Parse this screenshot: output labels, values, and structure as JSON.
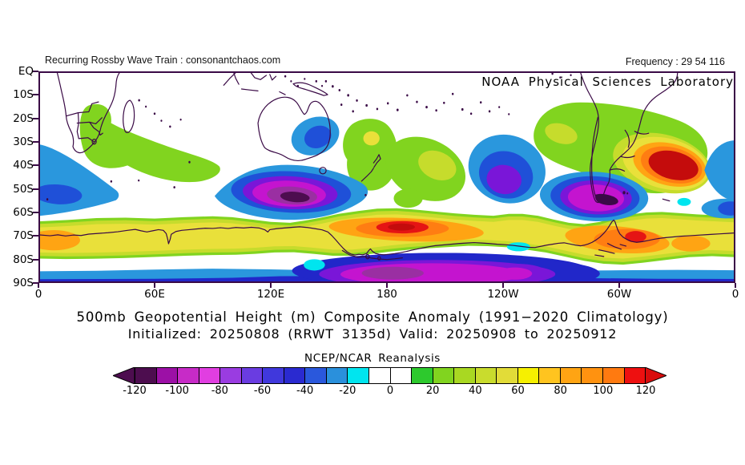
{
  "header": {
    "left": "Recurring Rossby Wave Train : consonantchaos.com",
    "frequency": "Frequency : 29 54 116",
    "org": "NOAA Physical Sciences Laboratory"
  },
  "title": {
    "line1": "500mb Geopotential Height (m) Composite Anomaly (1991−2020 Climatology)",
    "line2": "Initialized: 20250808 (RRWT 3135d) Valid: 20250908 to 20250912"
  },
  "axes": {
    "y_ticks": [
      "EQ",
      "10S",
      "20S",
      "30S",
      "40S",
      "50S",
      "60S",
      "70S",
      "80S",
      "90S"
    ],
    "x_ticks": [
      "0",
      "60E",
      "120E",
      "180",
      "120W",
      "60W",
      "0"
    ]
  },
  "colorbar": {
    "label": "NCEP/NCAR Reanalysis",
    "tick_labels": [
      "-120",
      "-100",
      "-80",
      "-60",
      "-40",
      "-20",
      "0",
      "20",
      "40",
      "60",
      "80",
      "100",
      "120"
    ],
    "cell_colors": [
      "#4d0d4f",
      "#9c10a6",
      "#c72bc7",
      "#e13ee1",
      "#9a3ce1",
      "#6a3ce1",
      "#4038dc",
      "#2a2ad0",
      "#2a58dc",
      "#2a90dc",
      "#00e5ef",
      "#ffffff",
      "#ffffff",
      "#2dc92d",
      "#81d41f",
      "#a9d822",
      "#c9dc2d",
      "#e2dc38",
      "#f6f000",
      "#ffc41f",
      "#ffa413",
      "#ff9210",
      "#ff7a10",
      "#ee1010"
    ],
    "left_arrow": "#4d0d4f",
    "right_arrow": "#d90c0c"
  },
  "palette": {
    "lightblue": "#2a97dd",
    "blue": "#1f50d8",
    "deepblue": "#2127c9",
    "cyan": "#00e5ef",
    "purple": "#7a16d8",
    "magenta": "#c414cf",
    "mutedpurple": "#9a2fa2",
    "darkpurple": "#4d0d4f",
    "green": "#81d41f",
    "yellowgreen": "#c6dc2c",
    "yellow": "#e9e03a",
    "orange": "#ffa413",
    "deeporange": "#ff7d12",
    "red": "#e51414",
    "darkred": "#c40c0c",
    "coast": "#3a0a46",
    "frame": "#3a0a46"
  },
  "chart_data": {
    "type": "heatmap",
    "subtype": "filled-contour-anomaly-map",
    "title": "500mb Geopotential Height (m) Composite Anomaly (1991-2020 Climatology)",
    "initialized": "20250808",
    "wave_train_id": "RRWT 3135d",
    "valid_period": "20250908 to 20250912",
    "frequency_values": [
      29,
      54,
      116
    ],
    "data_source": "NCEP/NCAR Reanalysis",
    "units": "m",
    "lon_domain_deg_east": [
      0,
      360
    ],
    "lat_domain_deg_south": [
      0,
      90
    ],
    "colorbar_range": [
      -120,
      120
    ],
    "colorbar_step": 10,
    "anomaly_centers": [
      {
        "name": "south-indian-low",
        "lon_e": 12,
        "lat_s": 52,
        "peak_m": -50
      },
      {
        "name": "east-australia-low",
        "lon_e": 144,
        "lat_s": 28,
        "peak_m": -50
      },
      {
        "name": "south-of-australia-low",
        "lon_e": 132,
        "lat_s": 53,
        "peak_m": -120
      },
      {
        "name": "southeast-pacific-low",
        "lon_e": 240,
        "lat_s": 46,
        "peak_m": -80
      },
      {
        "name": "patagonia-low",
        "lon_e": 288,
        "lat_s": 54,
        "peak_m": -100
      },
      {
        "name": "antarctic-interior-low",
        "lon_e": 190,
        "lat_s": 85,
        "peak_m": -110
      },
      {
        "name": "southern-africa-high",
        "lon_e": 50,
        "lat_s": 33,
        "peak_m": 30
      },
      {
        "name": "coral-sea-high",
        "lon_e": 172,
        "lat_s": 28,
        "peak_m": 50
      },
      {
        "name": "south-pacific-high",
        "lon_e": 206,
        "lat_s": 40,
        "peak_m": 40
      },
      {
        "name": "subtropical-south-america-high",
        "lon_e": 270,
        "lat_s": 26,
        "peak_m": 40
      },
      {
        "name": "south-atlantic-high",
        "lon_e": 328,
        "lat_s": 40,
        "peak_m": 120
      },
      {
        "name": "ross-sea-high",
        "lon_e": 187,
        "lat_s": 66,
        "peak_m": 115
      },
      {
        "name": "weddell-peninsula-high",
        "lon_e": 308,
        "lat_s": 70,
        "peak_m": 110
      },
      {
        "name": "greenwich-antarctic-coast-high",
        "lon_e": 10,
        "lat_s": 72,
        "peak_m": 90
      },
      {
        "name": "circumpolar-positive-band",
        "lon_e": "0-360",
        "lat_s": "62-80",
        "peak_m": 60
      },
      {
        "name": "polar-rim-negative-strip",
        "lon_e": "0-360",
        "lat_s": "85-90",
        "peak_m": -40
      }
    ]
  }
}
